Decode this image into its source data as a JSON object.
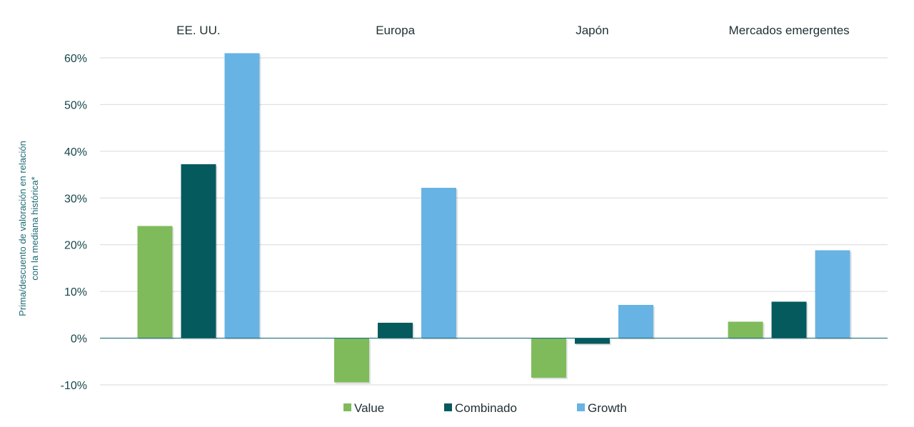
{
  "chart_data": {
    "type": "bar",
    "categories": [
      "EE. UU.",
      "Europa",
      "Japón",
      "Mercados emergentes"
    ],
    "series": [
      {
        "name": "Value",
        "color": "#7fbb5b",
        "values": [
          24,
          -9.5,
          -8.5,
          3.5
        ]
      },
      {
        "name": "Combinado",
        "color": "#055a5e",
        "values": [
          37.2,
          3.3,
          -1.2,
          7.8
        ]
      },
      {
        "name": "Growth",
        "color": "#67b3e3",
        "values": [
          61,
          32.2,
          7.1,
          18.8
        ]
      }
    ],
    "ylabel": "Prima/descuento de valoración en relación con la mediana histórica*",
    "ylabel_lines": [
      "Prima/descuento de valoración en relación",
      "con la mediana histórica*"
    ],
    "ylim": [
      -10,
      60
    ],
    "yticks": [
      60,
      50,
      40,
      30,
      20,
      10,
      0,
      -10
    ],
    "ytick_labels": [
      "60%",
      "50%",
      "40%",
      "30%",
      "20%",
      "10%",
      "0%",
      "-10%"
    ],
    "category_label_position": "top",
    "grid": true,
    "legend_position": "bottom-center"
  }
}
